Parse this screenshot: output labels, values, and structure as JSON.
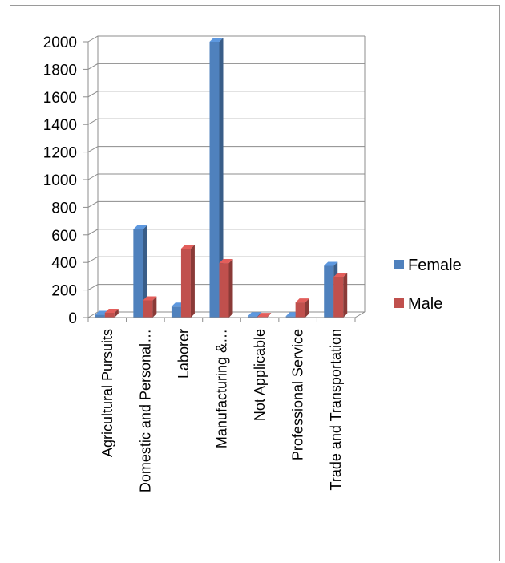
{
  "chart_data": {
    "type": "bar",
    "title": "",
    "xlabel": "",
    "ylabel": "",
    "categories": [
      "Agricultural Pursuits",
      "Domestic and Personal…",
      "Laborer",
      "Manufacturing &…",
      "Not Applicable",
      "Professional Service",
      "Trade and Transportation"
    ],
    "series": [
      {
        "name": "Female",
        "color": "#4f81bd",
        "values": [
          20,
          640,
          80,
          2000,
          10,
          10,
          375
        ]
      },
      {
        "name": "Male",
        "color": "#c0504d",
        "values": [
          35,
          125,
          500,
          395,
          5,
          110,
          295
        ]
      }
    ],
    "ylim": [
      0,
      2000
    ],
    "yticks": [
      "0",
      "200",
      "400",
      "600",
      "800",
      "1000",
      "1200",
      "1400",
      "1600",
      "1800",
      "2000"
    ],
    "grid": true,
    "legend": "right",
    "style": "3d-clustered-column"
  }
}
